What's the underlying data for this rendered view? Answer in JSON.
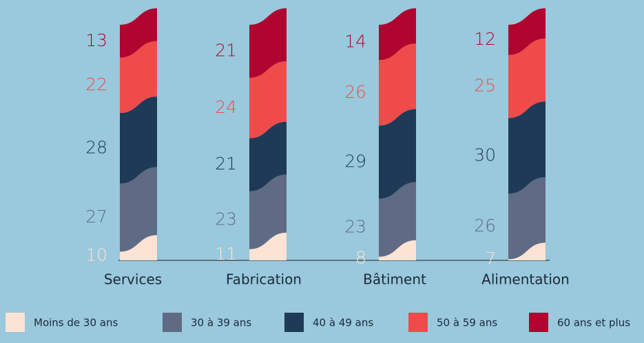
{
  "chart_data": {
    "type": "stacked_bar",
    "categories": [
      "Services",
      "Fabrication",
      "Bâtiment",
      "Alimentation"
    ],
    "series": [
      {
        "name": "Moins de 30 ans",
        "color": "#fde3d3",
        "values": [
          10,
          11,
          8,
          7
        ]
      },
      {
        "name": "30 à 39 ans",
        "color": "#5f6b85",
        "values": [
          27,
          23,
          23,
          26
        ]
      },
      {
        "name": "40 à 49 ans",
        "color": "#1e3a56",
        "values": [
          28,
          21,
          29,
          30
        ]
      },
      {
        "name": "50 à 59 ans",
        "color": "#ef4b4b",
        "values": [
          22,
          24,
          26,
          25
        ]
      },
      {
        "name": "60 ans et plus",
        "color": "#b0052f",
        "values": [
          13,
          21,
          14,
          12
        ]
      }
    ]
  }
}
